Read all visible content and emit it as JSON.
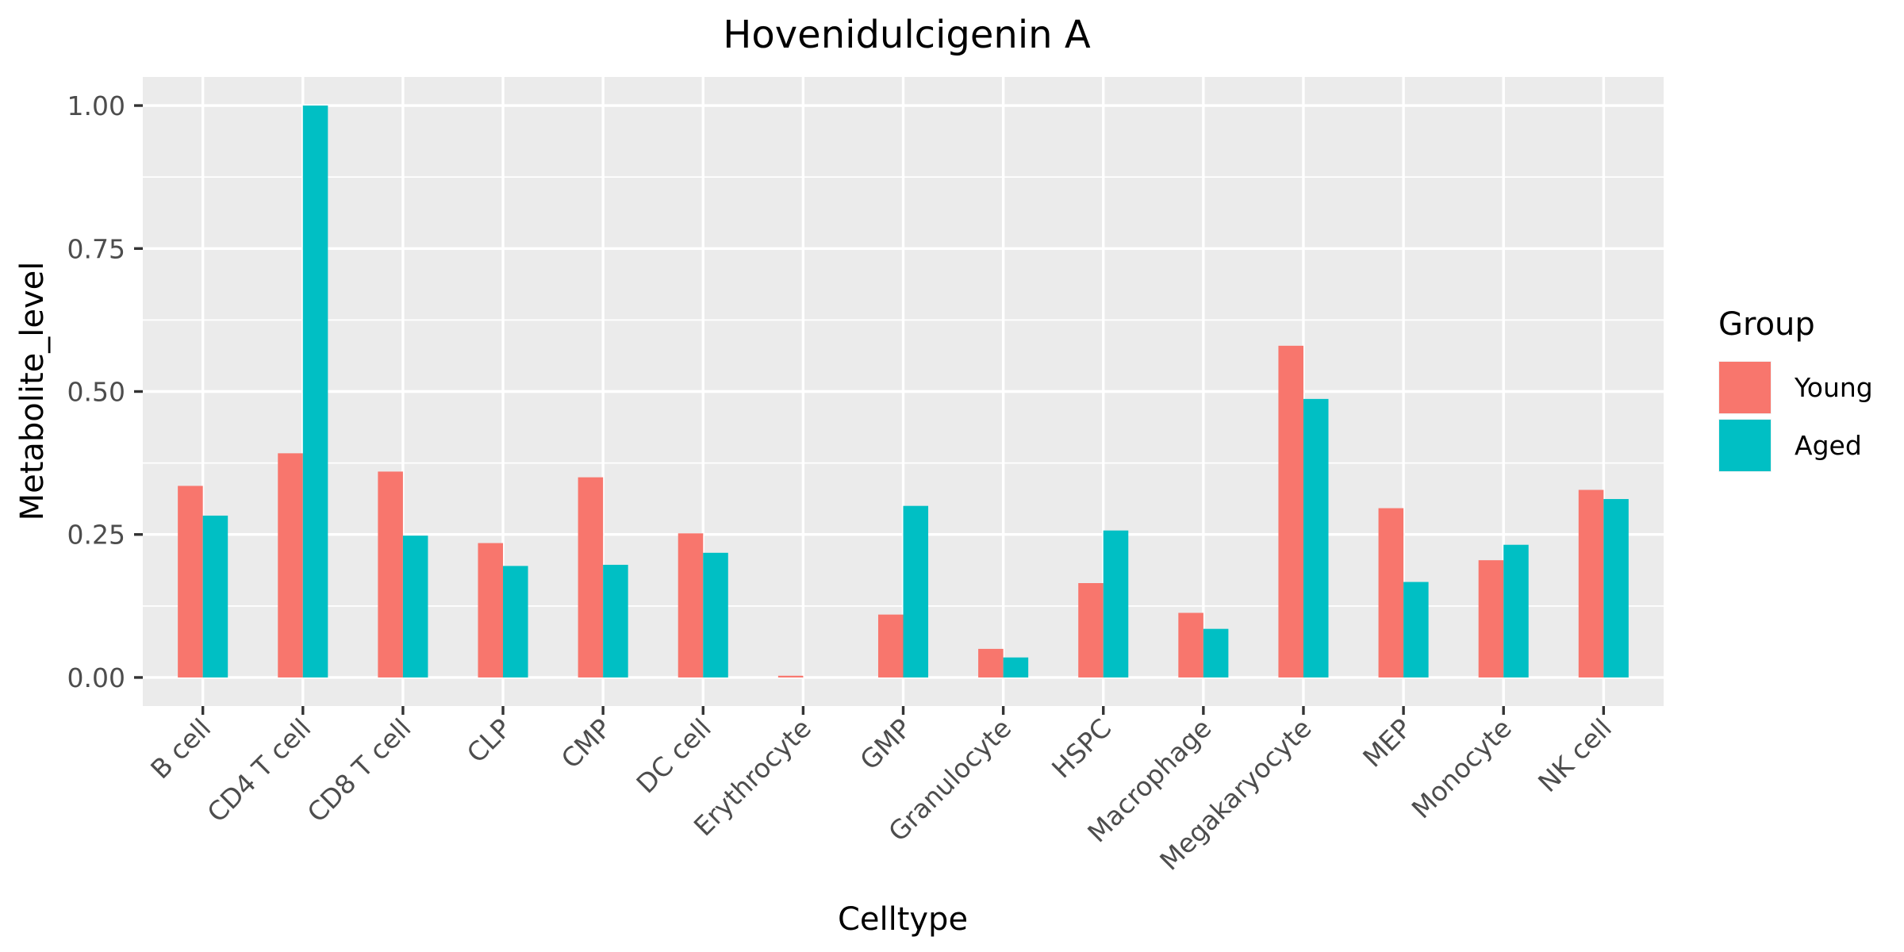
{
  "chart_data": {
    "type": "bar",
    "title": "Hovenidulcigenin A",
    "xlabel": "Celltype",
    "ylabel": "Metabolite_level",
    "ylim": [
      -0.05,
      1.05
    ],
    "yticks": [
      0.0,
      0.25,
      0.5,
      0.75,
      1.0
    ],
    "ytick_labels": [
      "0.00",
      "0.25",
      "0.50",
      "0.75",
      "1.00"
    ],
    "grid": true,
    "legend": {
      "title": "Group",
      "position": "right"
    },
    "categories": [
      "B cell",
      "CD4 T cell",
      "CD8 T cell",
      "CLP",
      "CMP",
      "DC cell",
      "Erythrocyte",
      "GMP",
      "Granulocyte",
      "HSPC",
      "Macrophage",
      "Megakaryocyte",
      "MEP",
      "Monocyte",
      "NK cell"
    ],
    "series": [
      {
        "name": "Young",
        "color": "#F8766D",
        "values": [
          0.335,
          0.392,
          0.36,
          0.235,
          0.35,
          0.252,
          0.003,
          0.11,
          0.05,
          0.165,
          0.113,
          0.58,
          0.296,
          0.205,
          0.328
        ]
      },
      {
        "name": "Aged",
        "color": "#00BFC4",
        "values": [
          0.283,
          1.0,
          0.248,
          0.195,
          0.197,
          0.218,
          0.0,
          0.3,
          0.035,
          0.257,
          0.085,
          0.487,
          0.167,
          0.232,
          0.312
        ]
      }
    ]
  }
}
